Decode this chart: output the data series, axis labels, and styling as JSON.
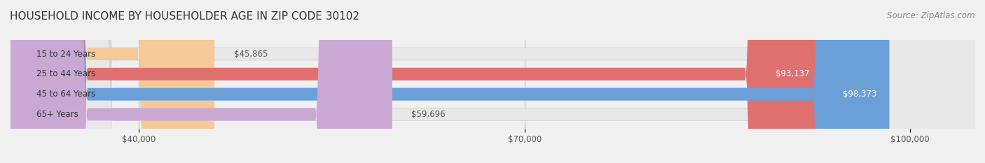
{
  "title": "HOUSEHOLD INCOME BY HOUSEHOLDER AGE IN ZIP CODE 30102",
  "source": "Source: ZipAtlas.com",
  "categories": [
    "15 to 24 Years",
    "25 to 44 Years",
    "45 to 64 Years",
    "65+ Years"
  ],
  "values": [
    45865,
    93137,
    98373,
    59696
  ],
  "bar_colors": [
    "#f5c99a",
    "#e07070",
    "#6a9fd8",
    "#c9a8d4"
  ],
  "bar_edge_colors": [
    "#e8a060",
    "#c05050",
    "#4a7fb8",
    "#a080b0"
  ],
  "value_labels": [
    "$45,865",
    "$93,137",
    "$98,373",
    "$59,696"
  ],
  "xmin": 30000,
  "xmax": 105000,
  "xticks": [
    40000,
    70000,
    100000
  ],
  "xtick_labels": [
    "$40,000",
    "$70,000",
    "$100,000"
  ],
  "background_color": "#f0f0f0",
  "bar_background_color": "#e8e8e8",
  "title_fontsize": 11,
  "source_fontsize": 8.5,
  "label_fontsize": 8.5,
  "tick_fontsize": 8.5,
  "bar_height": 0.62,
  "label_color_inside": "#ffffff",
  "label_color_outside": "#555555"
}
